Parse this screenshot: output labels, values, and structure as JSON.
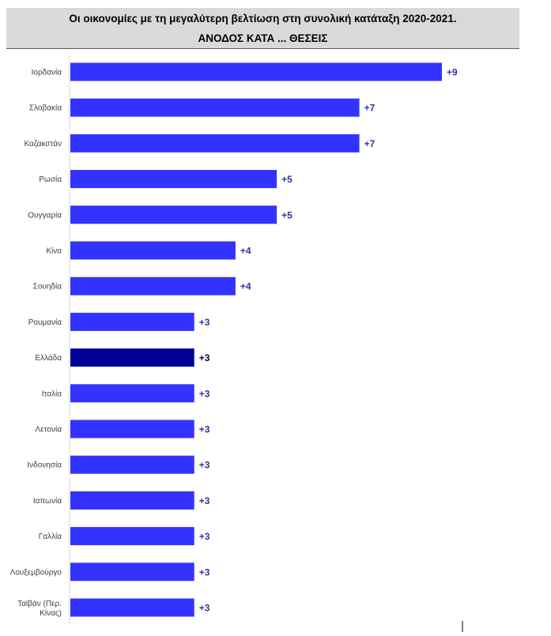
{
  "chart_data": {
    "type": "bar",
    "orientation": "horizontal",
    "title": "Οι οικονομίες με τη μεγαλύτερη βελτίωση στη συνολική κατάταξη 2020-2021.",
    "subtitle": "ΑΝΟΔΟΣ ΚΑΤΑ ... ΘΕΣΕΙΣ",
    "categories": [
      "Ιορδανία",
      "Σλοβακία",
      "Καζακστάν",
      "Ρωσία",
      "Ουγγαρία",
      "Κίνα",
      "Σουηδία",
      "Ρουμανία",
      "Ελλάδα",
      "Ιταλία",
      "Λετονία",
      "Ινδονησία",
      "Ιαπωνία",
      "Γαλλία",
      "Λουξεμβούργο",
      "Ταϊβάν (Περ. Κίνας)"
    ],
    "values": [
      9,
      7,
      7,
      5,
      5,
      4,
      4,
      3,
      3,
      3,
      3,
      3,
      3,
      3,
      3,
      3
    ],
    "data_labels": [
      "+9",
      "+7",
      "+7",
      "+5",
      "+5",
      "+4",
      "+4",
      "+3",
      "+3",
      "+3",
      "+3",
      "+3",
      "+3",
      "+3",
      "+3",
      "+3"
    ],
    "highlight_category": "Ελλάδα",
    "xlim": [
      0,
      9
    ],
    "grid": false,
    "legend": "none",
    "colors": {
      "bar": "#3333ff",
      "highlight_bar": "#000099",
      "label": "#333399",
      "highlight_label": "#000033"
    }
  }
}
